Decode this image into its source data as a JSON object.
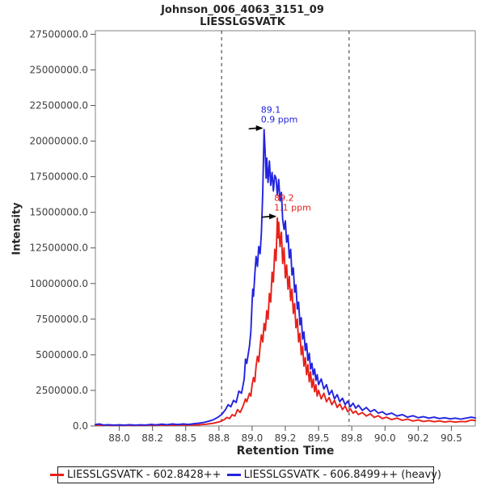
{
  "title": {
    "line1": "Johnson_006_4063_3151_09",
    "line2": "LIESSLGSVATK"
  },
  "axes": {
    "y_label": "Intensity",
    "x_label": "Retention Time"
  },
  "legend": {
    "items": [
      {
        "label": "LIESSLGSVATK - 602.8428++",
        "color": "#e8201a"
      },
      {
        "label": "LIESSLGSVATK - 606.8499++ (heavy)",
        "color": "#2323e0"
      }
    ]
  },
  "chart_data": {
    "type": "line",
    "title": "Johnson_006_4063_3151_09 / LIESSLGSVATK",
    "xlabel": "Retention Time",
    "ylabel": "Intensity",
    "xlim": [
      87.82,
      90.68
    ],
    "ylim": [
      0,
      27750000
    ],
    "grid": false,
    "legend_position": "bottom",
    "frame_color": "#808080",
    "tick_color": "#555555",
    "boundary_color": "#333333",
    "boundary_lines": [
      88.77,
      89.73
    ],
    "y_ticks": [
      {
        "value": 0,
        "label": "0.0"
      },
      {
        "value": 2500000,
        "label": "2500000.0"
      },
      {
        "value": 5000000,
        "label": "5000000.0"
      },
      {
        "value": 7500000,
        "label": "7500000.0"
      },
      {
        "value": 10000000,
        "label": "10000000.0"
      },
      {
        "value": 12500000,
        "label": "12500000.0"
      },
      {
        "value": 15000000,
        "label": "15000000.0"
      },
      {
        "value": 17500000,
        "label": "17500000.0"
      },
      {
        "value": 20000000,
        "label": "20000000.0"
      },
      {
        "value": 22500000,
        "label": "22500000.0"
      },
      {
        "value": 25000000,
        "label": "25000000.0"
      },
      {
        "value": 27500000,
        "label": "27500000.0"
      }
    ],
    "x_ticks": [
      {
        "value": 88.0,
        "label": "88.0"
      },
      {
        "value": 88.25,
        "label": "88.2"
      },
      {
        "value": 88.5,
        "label": "88.5"
      },
      {
        "value": 88.75,
        "label": "88.8"
      },
      {
        "value": 89.0,
        "label": "89.0"
      },
      {
        "value": 89.25,
        "label": "89.2"
      },
      {
        "value": 89.5,
        "label": "89.5"
      },
      {
        "value": 89.75,
        "label": "89.8"
      },
      {
        "value": 90.0,
        "label": "90.0"
      },
      {
        "value": 90.25,
        "label": "90.2"
      },
      {
        "value": 90.5,
        "label": "90.5"
      }
    ],
    "annotations": [
      {
        "lines": [
          "89.1",
          "0.9 ppm"
        ],
        "color": "#2323e0",
        "rt": 89.09,
        "intensity": 20800000
      },
      {
        "lines": [
          "89.2",
          "1.1 ppm"
        ],
        "color": "#e8201a",
        "rt": 89.19,
        "intensity": 14600000
      }
    ],
    "series": [
      {
        "name": "LIESSLGSVATK - 602.8428++",
        "color": "#e8201a",
        "width": 1.9,
        "points": [
          [
            87.82,
            60000
          ],
          [
            87.86,
            40000
          ],
          [
            87.9,
            70000
          ],
          [
            87.94,
            40000
          ],
          [
            87.98,
            60000
          ],
          [
            88.02,
            40000
          ],
          [
            88.06,
            60000
          ],
          [
            88.1,
            40000
          ],
          [
            88.14,
            60000
          ],
          [
            88.18,
            40000
          ],
          [
            88.22,
            60000
          ],
          [
            88.26,
            50000
          ],
          [
            88.3,
            70000
          ],
          [
            88.34,
            50000
          ],
          [
            88.38,
            70000
          ],
          [
            88.42,
            50000
          ],
          [
            88.46,
            80000
          ],
          [
            88.5,
            60000
          ],
          [
            88.54,
            80000
          ],
          [
            88.58,
            70000
          ],
          [
            88.62,
            100000
          ],
          [
            88.66,
            130000
          ],
          [
            88.7,
            180000
          ],
          [
            88.73,
            240000
          ],
          [
            88.76,
            320000
          ],
          [
            88.79,
            450000
          ],
          [
            88.81,
            600000
          ],
          [
            88.83,
            520000
          ],
          [
            88.85,
            800000
          ],
          [
            88.87,
            700000
          ],
          [
            88.89,
            1150000
          ],
          [
            88.91,
            950000
          ],
          [
            88.93,
            1350000
          ],
          [
            88.95,
            1900000
          ],
          [
            88.96,
            1700000
          ],
          [
            88.98,
            2300000
          ],
          [
            88.99,
            2100000
          ],
          [
            89.0,
            2900000
          ],
          [
            89.01,
            3400000
          ],
          [
            89.02,
            3100000
          ],
          [
            89.03,
            4200000
          ],
          [
            89.04,
            4900000
          ],
          [
            89.05,
            4500000
          ],
          [
            89.06,
            5600000
          ],
          [
            89.07,
            6400000
          ],
          [
            89.08,
            5900000
          ],
          [
            89.09,
            7200000
          ],
          [
            89.1,
            6700000
          ],
          [
            89.11,
            8100000
          ],
          [
            89.12,
            7500000
          ],
          [
            89.13,
            9300000
          ],
          [
            89.14,
            8700000
          ],
          [
            89.15,
            10800000
          ],
          [
            89.16,
            10100000
          ],
          [
            89.17,
            12400000
          ],
          [
            89.18,
            11600000
          ],
          [
            89.19,
            14600000
          ],
          [
            89.195,
            13200000
          ],
          [
            89.2,
            14300000
          ],
          [
            89.21,
            12600000
          ],
          [
            89.22,
            13600000
          ],
          [
            89.23,
            11400000
          ],
          [
            89.24,
            12500000
          ],
          [
            89.25,
            10400000
          ],
          [
            89.26,
            11300000
          ],
          [
            89.27,
            9600000
          ],
          [
            89.28,
            10500000
          ],
          [
            89.29,
            8800000
          ],
          [
            89.3,
            9600000
          ],
          [
            89.31,
            7900000
          ],
          [
            89.32,
            8600000
          ],
          [
            89.33,
            6900000
          ],
          [
            89.34,
            7500000
          ],
          [
            89.35,
            5900000
          ],
          [
            89.36,
            6500000
          ],
          [
            89.37,
            5000000
          ],
          [
            89.38,
            5600000
          ],
          [
            89.39,
            4200000
          ],
          [
            89.4,
            4800000
          ],
          [
            89.41,
            3600000
          ],
          [
            89.42,
            4300000
          ],
          [
            89.43,
            3100000
          ],
          [
            89.44,
            3800000
          ],
          [
            89.45,
            2700000
          ],
          [
            89.46,
            3300000
          ],
          [
            89.47,
            2400000
          ],
          [
            89.48,
            2900000
          ],
          [
            89.49,
            2100000
          ],
          [
            89.5,
            2500000
          ],
          [
            89.52,
            1900000
          ],
          [
            89.54,
            2300000
          ],
          [
            89.56,
            1700000
          ],
          [
            89.58,
            2000000
          ],
          [
            89.6,
            1500000
          ],
          [
            89.62,
            1800000
          ],
          [
            89.64,
            1300000
          ],
          [
            89.66,
            1550000
          ],
          [
            89.68,
            1150000
          ],
          [
            89.7,
            1400000
          ],
          [
            89.72,
            1000000
          ],
          [
            89.74,
            1200000
          ],
          [
            89.76,
            900000
          ],
          [
            89.78,
            1050000
          ],
          [
            89.8,
            800000
          ],
          [
            89.83,
            950000
          ],
          [
            89.86,
            700000
          ],
          [
            89.89,
            850000
          ],
          [
            89.92,
            600000
          ],
          [
            89.95,
            720000
          ],
          [
            89.98,
            520000
          ],
          [
            90.01,
            620000
          ],
          [
            90.05,
            450000
          ],
          [
            90.09,
            550000
          ],
          [
            90.13,
            400000
          ],
          [
            90.17,
            480000
          ],
          [
            90.21,
            350000
          ],
          [
            90.25,
            420000
          ],
          [
            90.29,
            320000
          ],
          [
            90.33,
            380000
          ],
          [
            90.37,
            300000
          ],
          [
            90.41,
            350000
          ],
          [
            90.45,
            280000
          ],
          [
            90.49,
            330000
          ],
          [
            90.53,
            270000
          ],
          [
            90.57,
            320000
          ],
          [
            90.61,
            300000
          ],
          [
            90.65,
            420000
          ],
          [
            90.68,
            380000
          ]
        ]
      },
      {
        "name": "LIESSLGSVATK - 606.8499++ (heavy)",
        "color": "#2323e0",
        "width": 1.9,
        "points": [
          [
            87.82,
            100000
          ],
          [
            87.85,
            150000
          ],
          [
            87.88,
            70000
          ],
          [
            87.92,
            90000
          ],
          [
            87.96,
            60000
          ],
          [
            88.0,
            80000
          ],
          [
            88.04,
            60000
          ],
          [
            88.08,
            90000
          ],
          [
            88.12,
            60000
          ],
          [
            88.16,
            80000
          ],
          [
            88.2,
            70000
          ],
          [
            88.24,
            110000
          ],
          [
            88.28,
            80000
          ],
          [
            88.32,
            130000
          ],
          [
            88.36,
            90000
          ],
          [
            88.4,
            140000
          ],
          [
            88.44,
            100000
          ],
          [
            88.48,
            150000
          ],
          [
            88.52,
            110000
          ],
          [
            88.56,
            160000
          ],
          [
            88.6,
            200000
          ],
          [
            88.64,
            260000
          ],
          [
            88.68,
            350000
          ],
          [
            88.71,
            450000
          ],
          [
            88.74,
            600000
          ],
          [
            88.77,
            800000
          ],
          [
            88.8,
            1150000
          ],
          [
            88.82,
            1500000
          ],
          [
            88.84,
            1350000
          ],
          [
            88.86,
            1800000
          ],
          [
            88.88,
            1650000
          ],
          [
            88.9,
            2450000
          ],
          [
            88.92,
            2300000
          ],
          [
            88.94,
            3300000
          ],
          [
            88.95,
            4700000
          ],
          [
            88.96,
            4400000
          ],
          [
            88.98,
            5600000
          ],
          [
            88.99,
            6600000
          ],
          [
            89.0,
            8700000
          ],
          [
            89.005,
            9600000
          ],
          [
            89.01,
            9100000
          ],
          [
            89.02,
            10600000
          ],
          [
            89.03,
            11900000
          ],
          [
            89.04,
            11200000
          ],
          [
            89.05,
            12600000
          ],
          [
            89.06,
            12100000
          ],
          [
            89.07,
            13600000
          ],
          [
            89.08,
            16500000
          ],
          [
            89.09,
            20800000
          ],
          [
            89.1,
            18900000
          ],
          [
            89.105,
            17400000
          ],
          [
            89.11,
            18800000
          ],
          [
            89.12,
            17100000
          ],
          [
            89.13,
            18600000
          ],
          [
            89.14,
            16900000
          ],
          [
            89.15,
            17800000
          ],
          [
            89.16,
            16500000
          ],
          [
            89.17,
            17600000
          ],
          [
            89.18,
            17400000
          ],
          [
            89.19,
            16200000
          ],
          [
            89.2,
            17300000
          ],
          [
            89.21,
            15800000
          ],
          [
            89.22,
            16400000
          ],
          [
            89.23,
            14500000
          ],
          [
            89.24,
            13800000
          ],
          [
            89.25,
            14400000
          ],
          [
            89.26,
            12900000
          ],
          [
            89.27,
            13400000
          ],
          [
            89.28,
            11800000
          ],
          [
            89.29,
            12400000
          ],
          [
            89.3,
            10600000
          ],
          [
            89.31,
            11100000
          ],
          [
            89.32,
            9400000
          ],
          [
            89.33,
            9900000
          ],
          [
            89.34,
            8200000
          ],
          [
            89.35,
            8700000
          ],
          [
            89.36,
            7100000
          ],
          [
            89.37,
            7600000
          ],
          [
            89.38,
            6100000
          ],
          [
            89.39,
            6600000
          ],
          [
            89.4,
            5300000
          ],
          [
            89.41,
            5800000
          ],
          [
            89.42,
            4600000
          ],
          [
            89.43,
            5100000
          ],
          [
            89.44,
            4000000
          ],
          [
            89.45,
            4400000
          ],
          [
            89.46,
            3600000
          ],
          [
            89.47,
            4000000
          ],
          [
            89.48,
            3200000
          ],
          [
            89.49,
            3600000
          ],
          [
            89.5,
            2900000
          ],
          [
            89.52,
            3300000
          ],
          [
            89.54,
            2600000
          ],
          [
            89.56,
            2900000
          ],
          [
            89.58,
            2200000
          ],
          [
            89.6,
            2500000
          ],
          [
            89.62,
            1900000
          ],
          [
            89.64,
            2200000
          ],
          [
            89.66,
            1700000
          ],
          [
            89.68,
            1950000
          ],
          [
            89.7,
            1500000
          ],
          [
            89.72,
            1750000
          ],
          [
            89.74,
            1350000
          ],
          [
            89.76,
            1600000
          ],
          [
            89.78,
            1250000
          ],
          [
            89.8,
            1450000
          ],
          [
            89.83,
            1100000
          ],
          [
            89.86,
            1300000
          ],
          [
            89.89,
            1000000
          ],
          [
            89.92,
            1150000
          ],
          [
            89.95,
            900000
          ],
          [
            89.98,
            1000000
          ],
          [
            90.01,
            800000
          ],
          [
            90.05,
            900000
          ],
          [
            90.09,
            700000
          ],
          [
            90.13,
            800000
          ],
          [
            90.17,
            620000
          ],
          [
            90.21,
            720000
          ],
          [
            90.25,
            580000
          ],
          [
            90.29,
            660000
          ],
          [
            90.33,
            550000
          ],
          [
            90.37,
            620000
          ],
          [
            90.41,
            520000
          ],
          [
            90.45,
            580000
          ],
          [
            90.49,
            500000
          ],
          [
            90.53,
            550000
          ],
          [
            90.57,
            480000
          ],
          [
            90.61,
            550000
          ],
          [
            90.65,
            620000
          ],
          [
            90.68,
            560000
          ]
        ]
      }
    ]
  }
}
